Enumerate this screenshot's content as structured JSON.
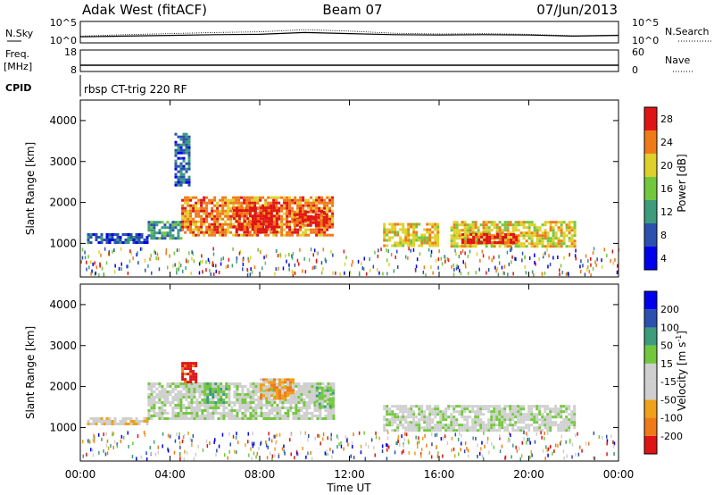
{
  "header": {
    "station": "Adak West (fitACF)",
    "beam": "Beam 07",
    "date": "07/Jun/2013"
  },
  "chart_data": [
    {
      "type": "line",
      "panel": "noise",
      "left_label": "N.Sky",
      "right_label": "N.Search",
      "y_ticks": [
        "10^5",
        "10^0"
      ],
      "x": [
        "00:00",
        "02:00",
        "04:00",
        "06:00",
        "08:00",
        "10:00",
        "12:00",
        "14:00",
        "16:00",
        "18:00",
        "20:00",
        "22:00",
        "24:00"
      ],
      "series": [
        {
          "values": [
            1.2,
            1.4,
            1.6,
            1.8,
            1.9,
            2.4,
            2.1,
            1.8,
            1.7,
            1.8,
            1.7,
            1.4,
            1.6
          ]
        },
        {
          "values": [
            1.4,
            1.8,
            2.1,
            2.4,
            2.6,
            3.2,
            2.8,
            2.2,
            2.0,
            2.1,
            1.9,
            1.5,
            1.7
          ]
        }
      ]
    },
    {
      "type": "line",
      "panel": "freq",
      "left_label_line1": "Freq.",
      "left_label_line2": "[MHz]",
      "right_label": "Nave",
      "left_ticks": [
        "18",
        "8"
      ],
      "right_ticks": [
        "60",
        "0"
      ],
      "series": [
        {
          "values": [
            10.5,
            10.5,
            10.5,
            10.5,
            10.5,
            10.5,
            10.5,
            10.5,
            10.5,
            10.5,
            10.5,
            10.5,
            10.5
          ]
        }
      ]
    },
    {
      "type": "table",
      "panel": "cpid",
      "label": "CPID",
      "value": "rbsp CT-trig 220 RF"
    },
    {
      "type": "heatmap",
      "panel": "power",
      "ylabel": "Slant Range [km]",
      "yticks": [
        "1000",
        "2000",
        "3000",
        "4000"
      ],
      "ylim": [
        180,
        4500
      ],
      "xlim": [
        0,
        24
      ],
      "colorbar_label": "Power [dB]",
      "colorbar_ticks": [
        "4",
        "8",
        "12",
        "16",
        "20",
        "24",
        "28"
      ],
      "colors": [
        "#0000ee",
        "#2a50b0",
        "#3c9c7c",
        "#72c83c",
        "#e0d02a",
        "#f07a18",
        "#e01414"
      ],
      "regions": [
        {
          "t": [
            0.3,
            3.0
          ],
          "r": [
            1050,
            1250
          ],
          "level": 1
        },
        {
          "t": [
            3.0,
            4.5
          ],
          "r": [
            1100,
            1550
          ],
          "level": 2
        },
        {
          "t": [
            4.5,
            11.3
          ],
          "r": [
            1200,
            2150
          ],
          "level": 5
        },
        {
          "t": [
            6.8,
            8.8
          ],
          "r": [
            1300,
            1900
          ],
          "level": 6
        },
        {
          "t": [
            9.5,
            11.0
          ],
          "r": [
            1450,
            1800
          ],
          "level": 6
        },
        {
          "t": [
            4.2,
            4.8
          ],
          "r": [
            2400,
            3700
          ],
          "level": 1
        },
        {
          "t": [
            13.5,
            16.0
          ],
          "r": [
            950,
            1500
          ],
          "level": 4
        },
        {
          "t": [
            16.5,
            22.0
          ],
          "r": [
            900,
            1550
          ],
          "level": 4
        },
        {
          "t": [
            17.0,
            19.5
          ],
          "r": [
            1000,
            1250
          ],
          "level": 6
        }
      ]
    },
    {
      "type": "heatmap",
      "panel": "velocity",
      "ylabel": "Slant Range [km]",
      "yticks": [
        "1000",
        "2000",
        "3000",
        "4000"
      ],
      "ylim": [
        180,
        4500
      ],
      "xlim": [
        0,
        24
      ],
      "colorbar_label": "Velocity [m s^-1]",
      "colorbar_ticks": [
        "-200",
        "-100",
        "-50",
        "-15",
        "15",
        "50",
        "100",
        "200"
      ],
      "colors": [
        "#e01414",
        "#f07a18",
        "#f0a01a",
        "#cfcfcf",
        "#cfcfcf",
        "#72c83c",
        "#3c9c7c",
        "#2a50b0",
        "#0000ee"
      ],
      "regions": [
        {
          "t": [
            0.3,
            3.0
          ],
          "r": [
            1100,
            1250
          ],
          "level": 3
        },
        {
          "t": [
            3.0,
            11.3
          ],
          "r": [
            1200,
            2100
          ],
          "level": 4
        },
        {
          "t": [
            4.5,
            5.2
          ],
          "r": [
            2100,
            2600
          ],
          "level": 0
        },
        {
          "t": [
            5.5,
            6.5
          ],
          "r": [
            1600,
            2100
          ],
          "level": 5
        },
        {
          "t": [
            8.0,
            9.5
          ],
          "r": [
            1700,
            2200
          ],
          "level": 2
        },
        {
          "t": [
            13.5,
            22.0
          ],
          "r": [
            900,
            1550
          ],
          "level": 4
        },
        {
          "t": [
            10.5,
            11.3
          ],
          "r": [
            1500,
            2000
          ],
          "level": 5
        }
      ]
    }
  ],
  "x_axis": {
    "ticks": [
      "00:00",
      "04:00",
      "08:00",
      "12:00",
      "16:00",
      "20:00",
      "00:00"
    ],
    "label": "Time UT"
  }
}
